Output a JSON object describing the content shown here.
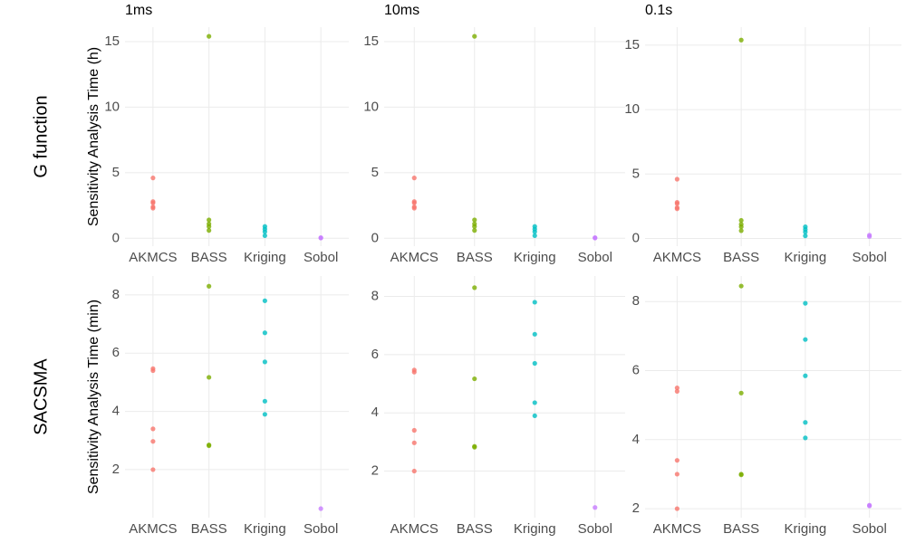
{
  "chart_data": [
    {
      "type": "scatter",
      "title": "1ms",
      "row_label": "G function",
      "ylabel": "Sensitivity Analysis Time (h)",
      "categories": [
        "AKMCS",
        "BASS",
        "Kriging",
        "Sobol"
      ],
      "colors": [
        "#F8766D",
        "#7CAE00",
        "#00BFC4",
        "#C77CFF"
      ],
      "values": [
        [
          4.6,
          2.8,
          2.7,
          2.4,
          2.3
        ],
        [
          15.4,
          1.4,
          1.1,
          0.9,
          0.6
        ],
        [
          0.9,
          0.7,
          0.5,
          0.2
        ],
        [
          0.02,
          0.05
        ]
      ],
      "ylim": [
        -0.6,
        16.1
      ],
      "yticks": [
        0,
        5,
        10,
        15
      ],
      "grid": true
    },
    {
      "type": "scatter",
      "title": "10ms",
      "categories": [
        "AKMCS",
        "BASS",
        "Kriging",
        "Sobol"
      ],
      "colors": [
        "#F8766D",
        "#7CAE00",
        "#00BFC4",
        "#C77CFF"
      ],
      "values": [
        [
          4.6,
          2.8,
          2.7,
          2.4,
          2.3
        ],
        [
          15.4,
          1.4,
          1.1,
          0.9,
          0.6
        ],
        [
          0.9,
          0.7,
          0.5,
          0.2
        ],
        [
          0.02,
          0.05
        ]
      ],
      "ylim": [
        -0.6,
        16.1
      ],
      "yticks": [
        0,
        5,
        10,
        15
      ],
      "grid": true
    },
    {
      "type": "scatter",
      "title": "0.1s",
      "categories": [
        "AKMCS",
        "BASS",
        "Kriging",
        "Sobol"
      ],
      "colors": [
        "#F8766D",
        "#7CAE00",
        "#00BFC4",
        "#C77CFF"
      ],
      "values": [
        [
          4.6,
          2.8,
          2.7,
          2.4,
          2.3
        ],
        [
          15.4,
          1.4,
          1.1,
          0.9,
          0.6
        ],
        [
          0.9,
          0.7,
          0.5,
          0.2
        ],
        [
          0.15,
          0.25
        ]
      ],
      "ylim": [
        -0.6,
        16.4
      ],
      "yticks": [
        0,
        5,
        10,
        15
      ],
      "grid": true
    },
    {
      "type": "scatter",
      "row_label": "SACSMA",
      "ylabel": "Sensitivity Analysis Time (min)",
      "categories": [
        "AKMCS",
        "BASS",
        "Kriging",
        "Sobol"
      ],
      "colors": [
        "#F8766D",
        "#7CAE00",
        "#00BFC4",
        "#C77CFF"
      ],
      "values": [
        [
          5.47,
          5.4,
          3.4,
          2.97,
          2.0
        ],
        [
          8.3,
          5.17,
          2.85,
          2.82
        ],
        [
          7.8,
          6.7,
          5.7,
          4.35,
          3.9
        ],
        [
          0.66
        ]
      ],
      "ylim": [
        0.35,
        8.65
      ],
      "yticks": [
        2,
        4,
        6,
        8
      ],
      "grid": true
    },
    {
      "type": "scatter",
      "categories": [
        "AKMCS",
        "BASS",
        "Kriging",
        "Sobol"
      ],
      "colors": [
        "#F8766D",
        "#7CAE00",
        "#00BFC4",
        "#C77CFF"
      ],
      "values": [
        [
          5.47,
          5.4,
          3.4,
          2.97,
          2.0
        ],
        [
          8.3,
          5.17,
          2.85,
          2.82
        ],
        [
          7.8,
          6.7,
          5.7,
          4.35,
          3.9
        ],
        [
          0.75
        ]
      ],
      "ylim": [
        0.4,
        8.7
      ],
      "yticks": [
        2,
        4,
        6,
        8
      ],
      "grid": true
    },
    {
      "type": "scatter",
      "categories": [
        "AKMCS",
        "BASS",
        "Kriging",
        "Sobol"
      ],
      "colors": [
        "#F8766D",
        "#7CAE00",
        "#00BFC4",
        "#C77CFF"
      ],
      "values": [
        [
          5.5,
          5.4,
          3.4,
          3.0,
          2.0
        ],
        [
          8.45,
          5.35,
          3.0,
          2.98
        ],
        [
          7.95,
          6.9,
          5.85,
          4.5,
          4.05
        ],
        [
          2.1,
          2.08
        ]
      ],
      "ylim": [
        1.74,
        8.74
      ],
      "yticks": [
        2,
        4,
        6,
        8
      ],
      "grid": true
    }
  ]
}
